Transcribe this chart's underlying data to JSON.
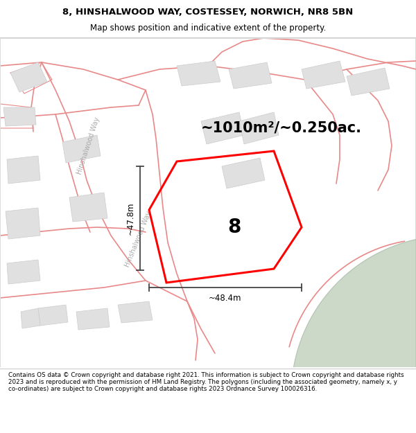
{
  "title_line1": "8, HINSHALWOOD WAY, COSTESSEY, NORWICH, NR8 5BN",
  "title_line2": "Map shows position and indicative extent of the property.",
  "area_label": "~1010m²/~0.250ac.",
  "property_number": "8",
  "dim_vertical": "~47.8m",
  "dim_horizontal": "~48.4m",
  "road_label": "Hinshalwood Way",
  "footer": "Contains OS data © Crown copyright and database right 2021. This information is subject to Crown copyright and database rights 2023 and is reproduced with the permission of HM Land Registry. The polygons (including the associated geometry, namely x, y co-ordinates) are subject to Crown copyright and database rights 2023 Ordnance Survey 100026316.",
  "bg_color": "#ffffff",
  "map_bg": "#ffffff",
  "road_color": "#f2aaaa",
  "road_outline": "#e88888",
  "property_fill": "#ffffff",
  "property_edge": "#ff0000",
  "building_color": "#e0e0e0",
  "building_edge": "#cccccc",
  "green_color": "#ccd8c8",
  "green_edge": "#b0c4b0",
  "dim_line_color": "#444444",
  "road_label_color": "#b0b0b0",
  "footer_bg": "#ffffff"
}
